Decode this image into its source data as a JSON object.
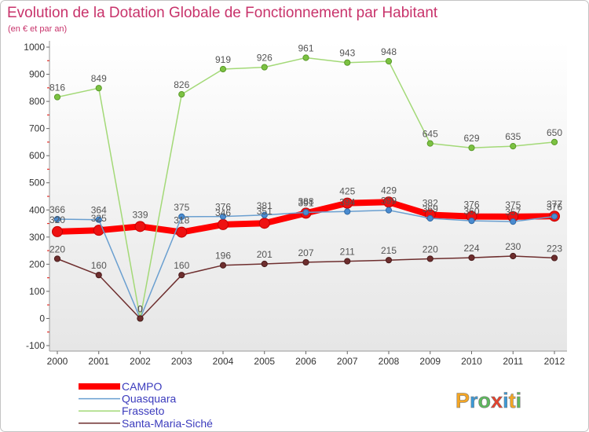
{
  "chart_data": {
    "type": "line",
    "title": "Evolution de la Dotation Globale de Fonctionnement par Habitant",
    "subtitle": "(en € et par an)",
    "xlabel": "",
    "ylabel": "",
    "categories": [
      "2000",
      "2001",
      "2002",
      "2003",
      "2004",
      "2005",
      "2006",
      "2007",
      "2008",
      "2009",
      "2010",
      "2011",
      "2012"
    ],
    "ylim": [
      -100,
      1000
    ],
    "yticks": [
      -100,
      0,
      100,
      200,
      300,
      400,
      500,
      600,
      700,
      800,
      900,
      1000
    ],
    "grid": false,
    "series": [
      {
        "name": "CAMPO",
        "color": "#ff0000",
        "marker_color": "#ee1111",
        "marker_stroke": "#c40000",
        "values": [
          320,
          325,
          339,
          318,
          346,
          351,
          388,
          425,
          429,
          382,
          376,
          375,
          377
        ]
      },
      {
        "name": "Quasquara",
        "color": "#6a9fd0",
        "marker_color": "#4a8bd0",
        "marker_stroke": "#2f6aa6",
        "values": [
          366,
          364,
          0,
          375,
          376,
          381,
          391,
          394,
          399,
          369,
          360,
          357,
          376
        ]
      },
      {
        "name": "Frasseto",
        "color": "#a3d977",
        "marker_color": "#7cc242",
        "marker_stroke": "#5a9a2a",
        "values": [
          816,
          849,
          0,
          826,
          919,
          926,
          961,
          943,
          948,
          645,
          629,
          635,
          650
        ]
      },
      {
        "name": "Santa-Maria-Siché",
        "color": "#6e2e2e",
        "marker_color": "#6e2e2e",
        "marker_stroke": "#4a1c1c",
        "values": [
          220,
          160,
          0,
          160,
          196,
          201,
          207,
          211,
          215,
          220,
          224,
          230,
          223
        ]
      }
    ]
  },
  "logo": {
    "text": "Proxiti",
    "letter_colors": [
      "#f5a623",
      "#3a9ad9",
      "#5cb85c",
      "#e8412c",
      "#3a9ad9",
      "#f5a623",
      "#5cb85c"
    ]
  },
  "colors": {
    "title": "#c8336b",
    "legend_text": "#3b3bbd",
    "tick_label": "#333333",
    "data_label": "#555555",
    "minor_tick": "#e0302a",
    "axis": "#9a9a9a"
  }
}
